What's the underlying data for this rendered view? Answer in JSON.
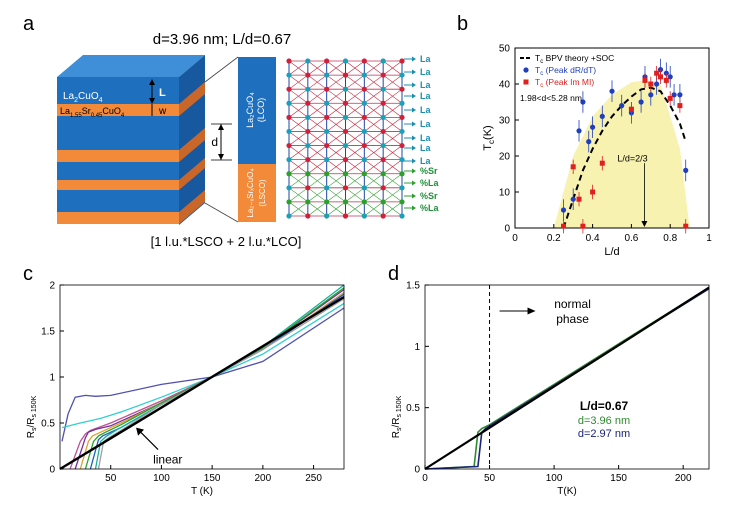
{
  "panels": {
    "a": {
      "label": "a",
      "header": "d=3.96 nm;  L/d=0.67",
      "layer_lco": "La",
      "layer_lco_sub": "2",
      "layer_lco_tail": "CuO",
      "layer_lco_sub2": "4",
      "layer_lsco_pre": "La",
      "layer_lsco_sub": "1.55",
      "layer_lsco_mid": "Sr",
      "layer_lsco_sub2": "0.45",
      "layer_lsco_tail": "CuO",
      "layer_lsco_sub3": "4",
      "dim_L": "L",
      "dim_w": "w",
      "dim_d": "d",
      "lco_box_text": "La₂CuO₄",
      "lco_box_abbr": "(LCO)",
      "lsco_box_text": "La₂₋ₓSrₓCuO₄",
      "lsco_box_abbr": "(LSCO)",
      "lattice_labels": [
        "La",
        "La",
        "La",
        "La",
        "La",
        "La",
        "La",
        "La",
        "La",
        "%Sr",
        "%La",
        "%Sr",
        "%La"
      ],
      "caption": "[1 l.u.*LSCO + 2 l.u.*LCO]"
    },
    "b": {
      "label": "b"
    },
    "c": {
      "label": "c",
      "annotation": "linear"
    },
    "d": {
      "label": "d",
      "annotation": "normal\nphase",
      "annotation_line1": "normal",
      "annotation_line2": "phase",
      "legend_title": "L/d=0.67",
      "legend_l1": "d=3.96 nm",
      "legend_l2": "d=2.97 nm"
    }
  },
  "colors": {
    "lco_blue": "#1f6fbf",
    "lsco_orange": "#f28a3a",
    "lattice_red": "#d0203a",
    "lattice_cyan": "#1aa0b8",
    "lattice_green": "#2ca02c",
    "dashed": "#000000",
    "band": "#f7f2b0",
    "green_curve": "#2e8b2e",
    "navy_curve": "#1a237e"
  },
  "chart_data": [
    {
      "panel": "b",
      "type": "scatter",
      "xlabel": "L/d",
      "ylabel": "T",
      "ylabel_sub": "c",
      "ylabel_unit": "(K)",
      "xlim": [
        0,
        1
      ],
      "ylim": [
        0,
        50
      ],
      "xticks": [
        0,
        0.2,
        0.4,
        0.6,
        0.8,
        1
      ],
      "yticks": [
        0,
        10,
        20,
        30,
        40,
        50
      ],
      "xtick_labels": [
        "0",
        "0.2",
        "0.4",
        "0.6",
        "0.8",
        "1"
      ],
      "ytick_labels": [
        "0",
        "10",
        "20",
        "30",
        "40",
        "50"
      ],
      "legend": [
        {
          "name_pre": "T",
          "name_sub": "c",
          "name_post": " BPV theory +SOC",
          "color": "#000000",
          "style": "dash"
        },
        {
          "name_pre": "T",
          "name_sub": "c",
          "name_post": " (Peak dR/dT)",
          "color": "#1f3fbf",
          "style": "circle"
        },
        {
          "name_pre": "T",
          "name_sub": "c",
          "name_post": " (Peak Im MI)",
          "color": "#e02020",
          "style": "square"
        }
      ],
      "note": "1.98<d<5.28 nm",
      "annotation": "L/d=2/3",
      "annotation_x": 0.667,
      "theory_curve": {
        "x": [
          0.25,
          0.3,
          0.35,
          0.4,
          0.45,
          0.5,
          0.55,
          0.6,
          0.65,
          0.7,
          0.75,
          0.8,
          0.85,
          0.88
        ],
        "y": [
          0,
          8,
          16,
          22,
          27,
          31,
          34,
          36.5,
          38.5,
          39,
          38,
          34,
          29,
          24
        ]
      },
      "band": {
        "x": [
          0.2,
          0.3,
          0.4,
          0.5,
          0.6,
          0.67,
          0.75,
          0.85,
          0.9,
          0.8,
          0.7,
          0.6,
          0.5,
          0.4,
          0.33,
          0.28
        ],
        "y": [
          0,
          20,
          31,
          37,
          40.5,
          41,
          40,
          22,
          0,
          0,
          0,
          0,
          0,
          0,
          0,
          0
        ]
      },
      "series": [
        {
          "name": "Peak dR/dT",
          "x": [
            0.25,
            0.3,
            0.33,
            0.35,
            0.38,
            0.4,
            0.45,
            0.5,
            0.55,
            0.6,
            0.65,
            0.67,
            0.7,
            0.73,
            0.75,
            0.78,
            0.8,
            0.82,
            0.85,
            0.88
          ],
          "y": [
            5,
            8,
            27,
            35,
            24,
            28,
            31,
            38,
            34,
            32,
            35,
            42,
            37,
            40,
            44,
            43,
            42,
            37,
            37,
            16
          ]
        },
        {
          "name": "Peak Im MI",
          "x": [
            0.25,
            0.3,
            0.33,
            0.35,
            0.4,
            0.45,
            0.6,
            0.67,
            0.7,
            0.73,
            0.75,
            0.78,
            0.8,
            0.85,
            0.88
          ],
          "y": [
            0.5,
            17,
            8,
            0.5,
            10,
            18,
            33,
            41,
            40,
            43,
            42,
            41,
            36,
            34,
            0.5
          ]
        }
      ]
    },
    {
      "panel": "c",
      "type": "line",
      "xlabel": "T (K)",
      "ylabel": "R",
      "ylabel_sub": "s",
      "ylabel_div": "/R",
      "ylabel_sub2": "s 150K",
      "xlim": [
        0,
        280
      ],
      "ylim": [
        0,
        2
      ],
      "xticks": [
        50,
        100,
        150,
        200,
        250
      ],
      "yticks": [
        0,
        0.5,
        1,
        1.5,
        2
      ],
      "xtick_labels": [
        "50",
        "100",
        "150",
        "200",
        "250"
      ],
      "ytick_labels": [
        "0",
        "0.5",
        "1",
        "1.5",
        "2"
      ],
      "series": [
        {
          "color": "#5050b0",
          "x": [
            2,
            8,
            15,
            25,
            35,
            50,
            100,
            150,
            200,
            280
          ],
          "y": [
            0.3,
            0.6,
            0.78,
            0.8,
            0.79,
            0.8,
            0.92,
            1.0,
            1.17,
            1.75
          ]
        },
        {
          "color": "#30d0d0",
          "x": [
            2,
            20,
            40,
            60,
            100,
            150,
            200,
            280
          ],
          "y": [
            0.45,
            0.5,
            0.55,
            0.62,
            0.78,
            1.0,
            1.25,
            1.8
          ]
        },
        {
          "color": "#c05090",
          "x": [
            10,
            20,
            25,
            30,
            50,
            100,
            150,
            200,
            280
          ],
          "y": [
            0,
            0.3,
            0.38,
            0.42,
            0.5,
            0.74,
            1.0,
            1.3,
            1.9
          ]
        },
        {
          "color": "#7030a0",
          "x": [
            15,
            25,
            28,
            35,
            50,
            100,
            150,
            200,
            280
          ],
          "y": [
            0,
            0.34,
            0.4,
            0.43,
            0.47,
            0.72,
            1.0,
            1.32,
            1.95
          ]
        },
        {
          "color": "#e0a030",
          "x": [
            20,
            28,
            32,
            40,
            60,
            100,
            150,
            200,
            280
          ],
          "y": [
            0,
            0.3,
            0.36,
            0.4,
            0.5,
            0.72,
            1.0,
            1.3,
            1.92
          ]
        },
        {
          "color": "#2aa02a",
          "x": [
            25,
            33,
            38,
            45,
            60,
            100,
            150,
            200,
            280
          ],
          "y": [
            0,
            0.3,
            0.36,
            0.4,
            0.48,
            0.72,
            1.0,
            1.32,
            1.97
          ]
        },
        {
          "color": "#1a5fbf",
          "x": [
            30,
            38,
            42,
            50,
            60,
            100,
            150,
            200,
            280
          ],
          "y": [
            0,
            0.32,
            0.36,
            0.4,
            0.45,
            0.7,
            1.0,
            1.3,
            1.9
          ]
        },
        {
          "color": "#18b0a0",
          "x": [
            35,
            40,
            45,
            55,
            100,
            150,
            200,
            280
          ],
          "y": [
            0,
            0.3,
            0.35,
            0.42,
            0.7,
            1.0,
            1.33,
            2.0
          ]
        },
        {
          "color": "#a0a0a0",
          "x": [
            38,
            43,
            48,
            60,
            100,
            150,
            200,
            280
          ],
          "y": [
            0,
            0.3,
            0.34,
            0.42,
            0.7,
            1.0,
            1.3,
            1.85
          ]
        },
        {
          "color": "#000000",
          "x": [
            0,
            280
          ],
          "y": [
            0,
            1.87
          ],
          "width": 2.4,
          "linear": true
        }
      ],
      "annotation": "linear",
      "arrow_tip": [
        75,
        0.45
      ]
    },
    {
      "panel": "d",
      "type": "line",
      "xlabel": "T(K)",
      "ylabel": "R",
      "ylabel_sub": "s",
      "ylabel_div": "/R",
      "ylabel_sub2": "s 150K",
      "xlim": [
        0,
        220
      ],
      "ylim": [
        0,
        1.5
      ],
      "xticks": [
        0,
        50,
        100,
        150,
        200
      ],
      "yticks": [
        0,
        0.5,
        1,
        1.5
      ],
      "xtick_labels": [
        "0",
        "50",
        "100",
        "150",
        "200"
      ],
      "ytick_labels": [
        "0",
        "0.5",
        "1",
        "1.5"
      ],
      "vline_x": 50,
      "series": [
        {
          "name": "d=3.96 nm",
          "color": "#2e8b2e",
          "x": [
            0,
            38,
            41,
            44,
            50,
            100,
            150,
            220
          ],
          "y": [
            0,
            0.02,
            0.3,
            0.33,
            0.36,
            0.69,
            1.02,
            1.48
          ]
        },
        {
          "name": "d=2.97 nm",
          "color": "#1a237e",
          "x": [
            0,
            41,
            44,
            47,
            50,
            100,
            150,
            220
          ],
          "y": [
            0,
            0.02,
            0.3,
            0.33,
            0.35,
            0.68,
            1.01,
            1.47
          ]
        },
        {
          "name": "linear",
          "color": "#000000",
          "x": [
            0,
            220
          ],
          "y": [
            0,
            1.48
          ],
          "width": 2.2
        }
      ]
    }
  ]
}
